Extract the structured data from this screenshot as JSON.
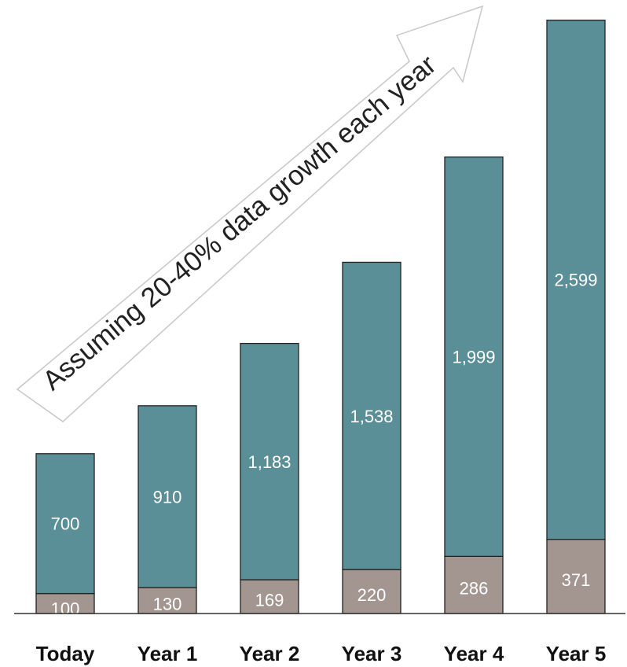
{
  "chart_data": {
    "type": "bar",
    "stacked": true,
    "categories": [
      "Today",
      "Year 1",
      "Year 2",
      "Year 3",
      "Year 4",
      "Year 5"
    ],
    "series": [
      {
        "values": [
          100,
          130,
          169,
          220,
          286,
          371
        ],
        "color": "#a39690"
      },
      {
        "values": [
          700,
          910,
          1183,
          1538,
          1999,
          2599
        ],
        "color": "#5a8f97"
      }
    ],
    "value_labels": [
      [
        "100",
        "130",
        "169",
        "220",
        "286",
        "371"
      ],
      [
        "700",
        "910",
        "1,183",
        "1,538",
        "1,999",
        "2,599"
      ]
    ],
    "annotation": "Assuming 20-40% data growth each year",
    "ylim": [
      0,
      3000
    ],
    "grid": false,
    "legend": "none"
  }
}
